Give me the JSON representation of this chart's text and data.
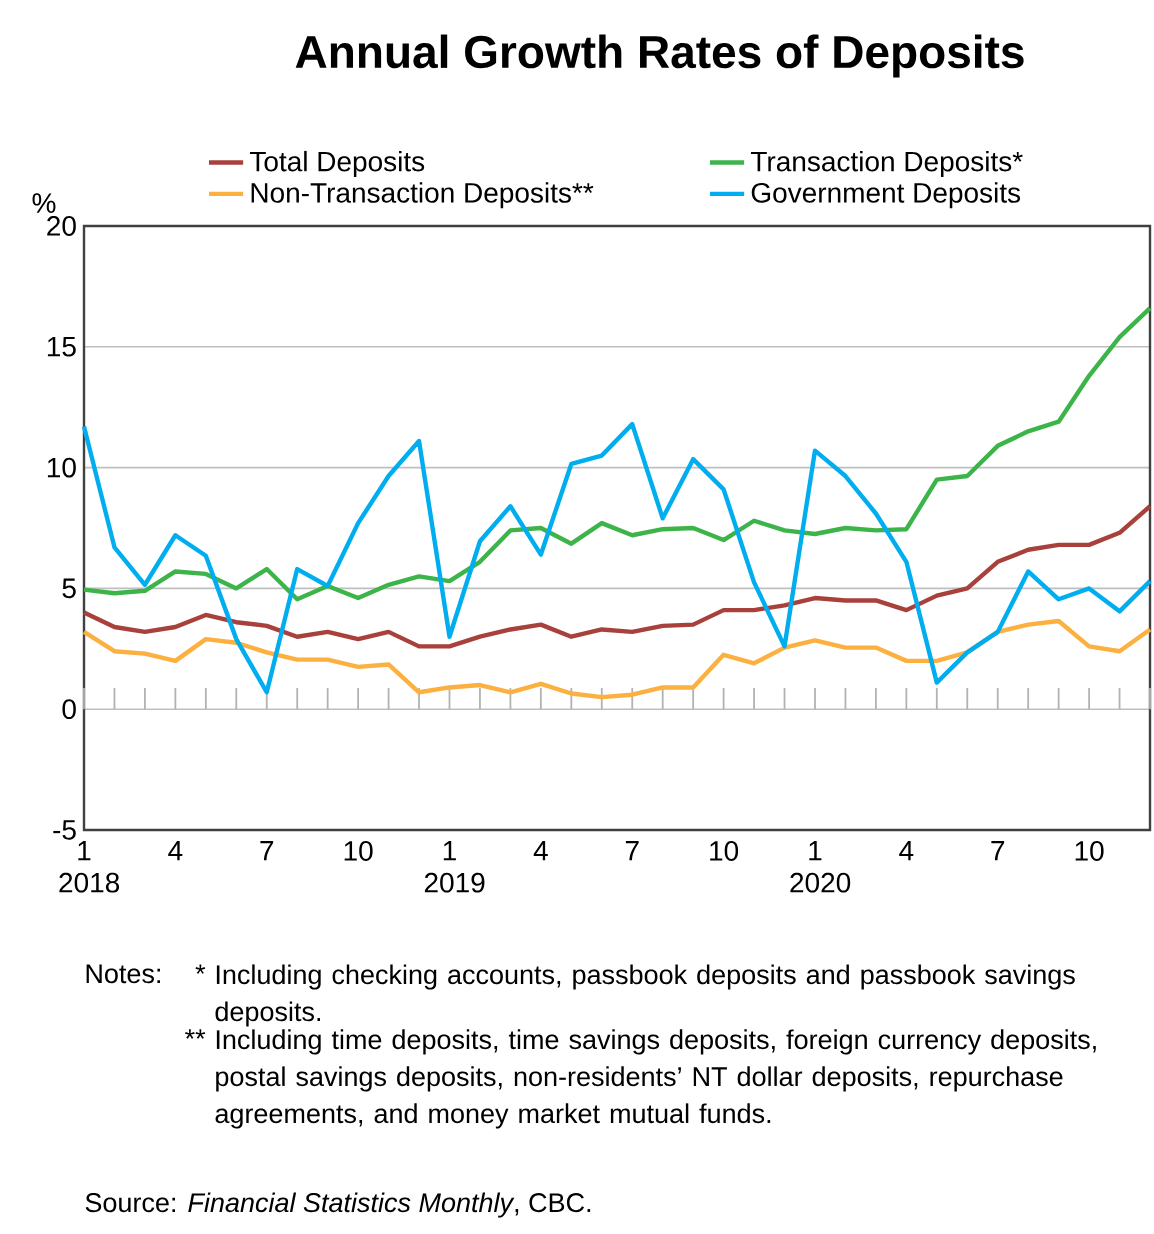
{
  "chart_data": {
    "type": "line",
    "title": "Annual Growth Rates of Deposits",
    "ylabel": "%",
    "categories": [
      "1 2018",
      null,
      null,
      "4",
      null,
      null,
      "7",
      null,
      null,
      "10",
      null,
      null,
      "1 2019",
      null,
      null,
      "4",
      null,
      null,
      "7",
      null,
      null,
      "10",
      null,
      null,
      "1 2020",
      null,
      null,
      "4",
      null,
      null,
      "7",
      null,
      null,
      "10",
      null,
      null
    ],
    "series": [
      {
        "name": "Total Deposits",
        "color": "#a8413b",
        "values": [
          4.0,
          3.4,
          3.2,
          3.4,
          3.9,
          3.6,
          3.45,
          3.0,
          3.2,
          2.9,
          3.2,
          2.6,
          2.6,
          3.0,
          3.3,
          3.5,
          3.0,
          3.3,
          3.2,
          3.45,
          3.5,
          4.1,
          4.1,
          4.3,
          4.6,
          4.5,
          4.5,
          4.1,
          4.7,
          5.0,
          6.1,
          6.6,
          6.8,
          6.8,
          7.3,
          8.4
        ]
      },
      {
        "name": "Transaction Deposits*",
        "color": "#3db44a",
        "values": [
          4.95,
          4.8,
          4.9,
          5.7,
          5.6,
          5.0,
          5.8,
          4.55,
          5.1,
          4.6,
          5.15,
          5.5,
          5.3,
          6.1,
          7.4,
          7.5,
          6.85,
          7.7,
          7.2,
          7.45,
          7.5,
          7.0,
          7.8,
          7.4,
          7.25,
          7.5,
          7.4,
          7.45,
          9.5,
          9.65,
          10.9,
          11.5,
          11.9,
          13.8,
          15.4,
          16.6
        ]
      },
      {
        "name": "Non-Transaction Deposits**",
        "color": "#fbb040",
        "values": [
          3.2,
          2.4,
          2.3,
          2.0,
          2.9,
          2.75,
          2.35,
          2.05,
          2.05,
          1.75,
          1.85,
          0.7,
          0.9,
          1.0,
          0.7,
          1.05,
          0.65,
          0.5,
          0.6,
          0.9,
          0.9,
          2.25,
          1.9,
          2.55,
          2.85,
          2.55,
          2.55,
          2.0,
          2.0,
          2.35,
          3.2,
          3.5,
          3.65,
          2.6,
          2.4,
          3.3
        ]
      },
      {
        "name": "Government Deposits",
        "color": "#00aeef",
        "values": [
          11.7,
          6.7,
          5.15,
          7.2,
          6.35,
          2.9,
          0.7,
          5.8,
          5.1,
          7.7,
          9.65,
          11.1,
          3.0,
          6.95,
          8.4,
          6.4,
          10.15,
          10.5,
          11.8,
          7.9,
          10.35,
          9.1,
          5.25,
          2.6,
          10.7,
          9.65,
          8.1,
          6.1,
          1.1,
          2.35,
          3.2,
          5.7,
          4.55,
          5.0,
          4.05,
          5.3
        ]
      }
    ],
    "ylim": [
      -5,
      20
    ],
    "yticks": [
      -5,
      0,
      5,
      10,
      15,
      20
    ],
    "grid": "y",
    "legend": "top",
    "line_style": "solid",
    "marker": "none",
    "annotations": [
      "Notes:",
      "*",
      "Including checking accounts, passbook deposits and passbook savings deposits.",
      "**",
      "Including time deposits, time savings deposits, foreign currency deposits, postal savings deposits, non-residents’ NT dollar deposits, repurchase agreements, and money market mutual funds.",
      "Source: *Financial Statistics Monthly*, CBC."
    ]
  }
}
